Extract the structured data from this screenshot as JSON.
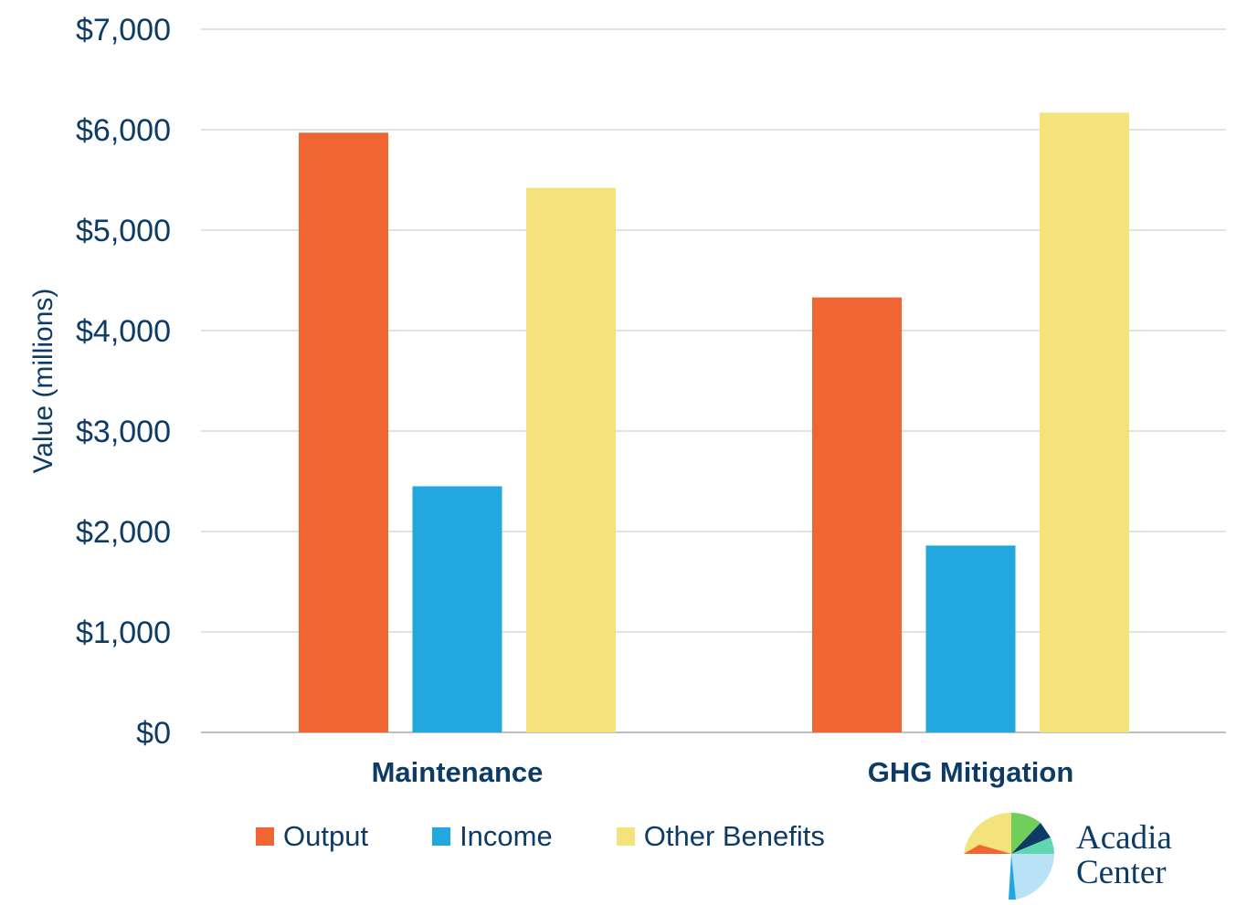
{
  "chart_data": {
    "type": "bar",
    "categories": [
      "Maintenance",
      "GHG Mitigation"
    ],
    "series": [
      {
        "name": "Output",
        "values": [
          5970,
          4330
        ],
        "color": "#f06633"
      },
      {
        "name": "Income",
        "values": [
          2450,
          1860
        ],
        "color": "#22a7df"
      },
      {
        "name": "Other Benefits",
        "values": [
          5420,
          6170
        ],
        "color": "#f3e37a"
      }
    ],
    "ylabel": "Value (millions)",
    "xlabel": "",
    "ylim": [
      0,
      7000
    ],
    "yticks": [
      "$0",
      "$1,000",
      "$2,000",
      "$3,000",
      "$4,000",
      "$5,000",
      "$6,000",
      "$7,000"
    ],
    "ytick_values": [
      0,
      1000,
      2000,
      3000,
      4000,
      5000,
      6000,
      7000
    ],
    "grid": true,
    "legend_position": "bottom"
  },
  "logo": {
    "line1": "Acadia",
    "line2": "Center"
  }
}
